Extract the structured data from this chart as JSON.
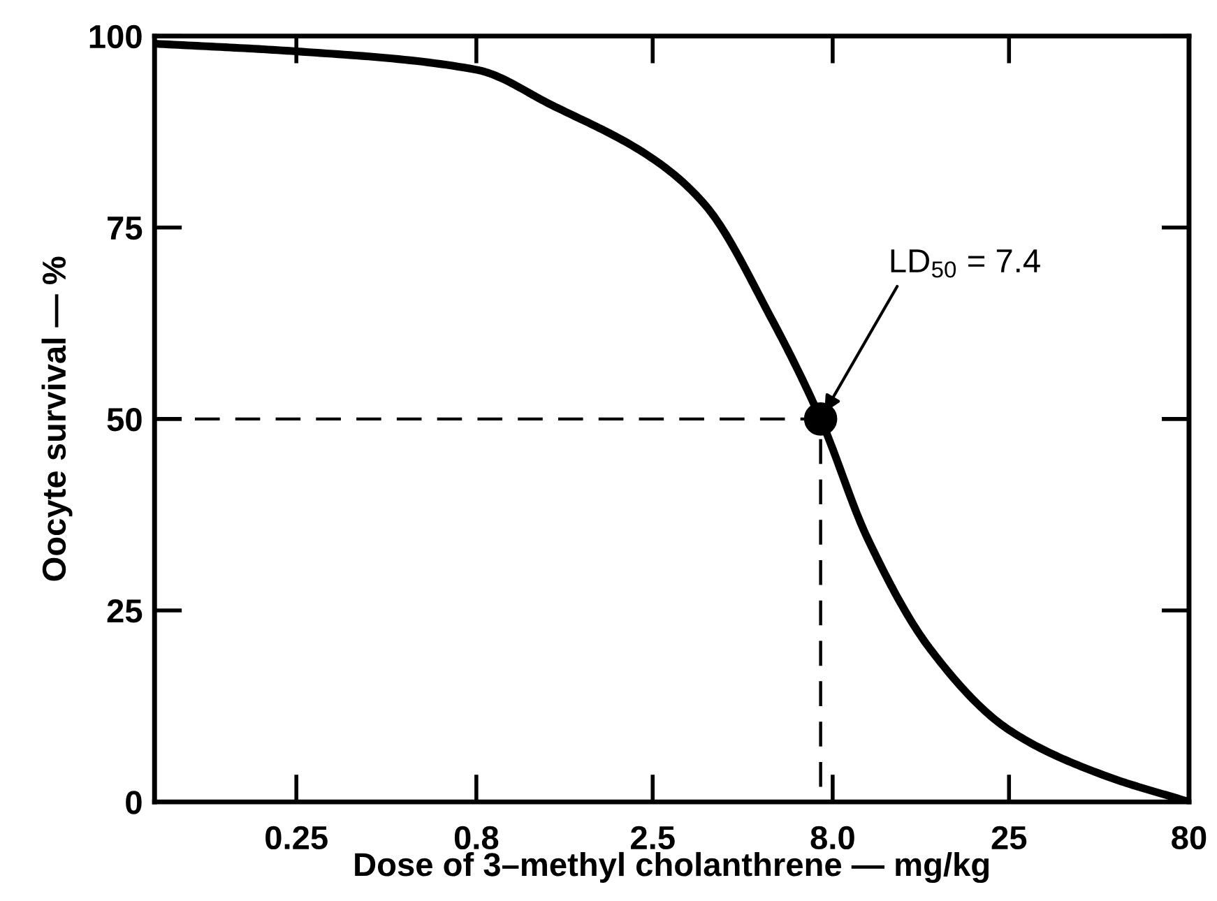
{
  "chart_data": {
    "type": "line",
    "xlabel": "Dose of 3–methyl cholanthrene — mg/kg",
    "ylabel": "Oocyte survival — %",
    "log": "x",
    "xlim": [
      0.1,
      80
    ],
    "ylim": [
      0,
      100
    ],
    "xticks": [
      0.25,
      0.8,
      2.5,
      {
        "value": 8,
        "label": "8.0"
      },
      25,
      80
    ],
    "yticks": [
      0,
      25,
      50,
      75,
      100
    ],
    "grid": false,
    "legend": false,
    "series": [
      {
        "color": "#000000",
        "line_style": "solid",
        "marker": "none",
        "x": [
          0.1,
          0.25,
          0.8,
          1.3,
          2.5,
          3.5,
          5.4,
          7.4,
          10,
          15,
          25,
          46,
          80
        ],
        "values": [
          99,
          98,
          95.6,
          91,
          84,
          78,
          63,
          50,
          34.5,
          20,
          9.4,
          3.5,
          0
        ]
      },
      {
        "type": "line",
        "color": "#000000",
        "line_style": "dashed",
        "marker": "none",
        "x": [
          0.1,
          7.4,
          7.4
        ],
        "values": [
          50,
          50,
          0
        ]
      },
      {
        "type": "scatter",
        "color": "#000000",
        "marker": "circle",
        "x": [
          7.4
        ],
        "values": [
          50
        ]
      }
    ],
    "annotations": [
      {
        "text": "LD$_{50}$ = 7.4",
        "x": 7.4,
        "y": 50
      }
    ]
  }
}
